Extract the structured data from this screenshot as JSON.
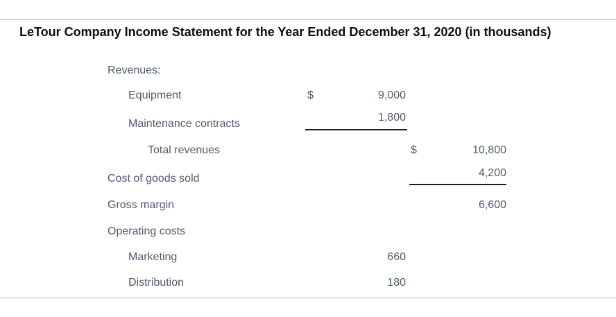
{
  "title": "LeTour Company Income Statement for the Year Ended December 31, 2020 (in thousands)",
  "statement": {
    "rows": [
      {
        "label": "Revenues:"
      },
      {
        "label": "Equipment",
        "col1_currency": "$",
        "col1_amount": "9,000"
      },
      {
        "label": "Maintenance contracts",
        "col1_amount": "1,800",
        "col1_underline": true
      },
      {
        "label": "Total revenues",
        "col2_currency": "$",
        "col2_amount": "10,800"
      },
      {
        "label": "Cost of goods sold",
        "col2_amount": "4,200",
        "col2_underline": true
      },
      {
        "label": "Gross margin",
        "col2_amount": "6,600"
      },
      {
        "label": "Operating costs"
      },
      {
        "label": "Marketing",
        "col1_amount": "660"
      },
      {
        "label": "Distribution",
        "col1_amount": "180"
      }
    ]
  },
  "colors": {
    "body_text": "#4f5b6b",
    "title_text": "#0d0d0d",
    "divider": "#b6b6b6",
    "subtotal_rule": "#1f1f1f"
  }
}
